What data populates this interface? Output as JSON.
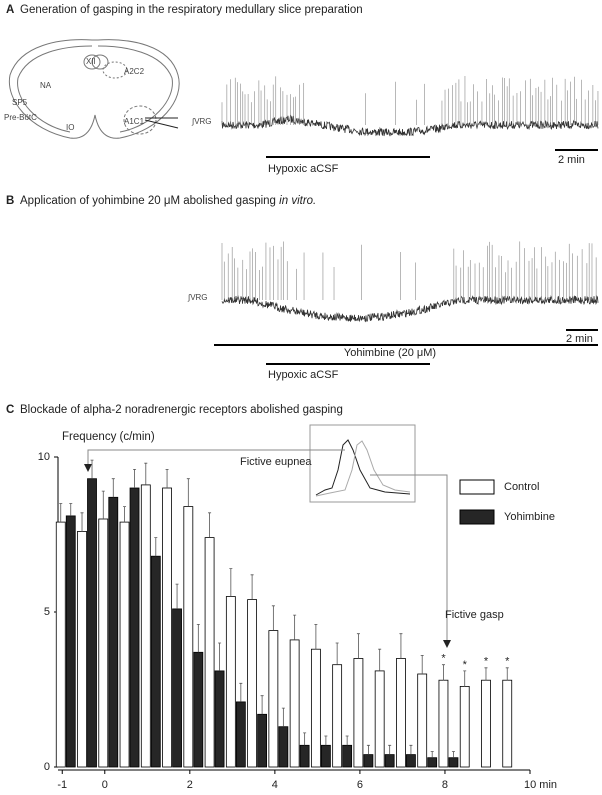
{
  "panel_a": {
    "letter": "A",
    "title": "Generation of gasping in the respiratory medullary slice preparation",
    "slice_labels": [
      "SP5",
      "NA",
      "XII",
      "A2C2",
      "A1C1",
      "Pre-BötC",
      "IO"
    ],
    "trace_label": "∫VRG",
    "scale_label": "2 min",
    "condition": "Hypoxic aCSF"
  },
  "panel_b": {
    "letter": "B",
    "title": "Application of yohimbine 20 μM abolished gasping",
    "title_italic": "in vitro.",
    "trace_label": "∫VRG",
    "scale_label": "2 min",
    "drug": "Yohimbine (20 μM)",
    "condition": "Hypoxic aCSF"
  },
  "chart_data": {
    "type": "bar",
    "letter": "C",
    "title": "Blockade of alpha-2 noradrenergic receptors abolished gasping",
    "y_label": "Frequency (c/min)",
    "x": [
      -1,
      -0.5,
      0,
      0.5,
      1,
      1.5,
      2,
      2.5,
      3,
      3.5,
      4,
      4.5,
      5,
      5.5,
      6,
      6.5,
      7,
      7.5,
      8,
      8.5,
      9,
      9.5
    ],
    "series": [
      {
        "name": "Control",
        "color": "#ffffff",
        "values": [
          7.9,
          7.6,
          8.0,
          7.9,
          9.1,
          9.0,
          8.4,
          7.4,
          5.5,
          5.4,
          4.4,
          4.1,
          3.8,
          3.3,
          3.5,
          3.1,
          3.5,
          3.0,
          2.8,
          2.6,
          2.8,
          2.8
        ],
        "errors": [
          0.6,
          0.6,
          0.9,
          0.5,
          0.7,
          0.6,
          0.9,
          0.8,
          0.9,
          0.8,
          0.8,
          0.8,
          0.8,
          0.7,
          0.8,
          0.7,
          0.8,
          0.6,
          0.5,
          0.5,
          0.4,
          0.4
        ]
      },
      {
        "name": "Yohimbine",
        "color": "#262626",
        "values": [
          8.1,
          9.3,
          8.7,
          9.0,
          6.8,
          5.1,
          3.7,
          3.1,
          2.1,
          1.7,
          1.3,
          0.7,
          0.7,
          0.7,
          0.4,
          0.4,
          0.4,
          0.3,
          0.3,
          null,
          null,
          null
        ],
        "errors": [
          0.4,
          0.6,
          0.6,
          0.6,
          0.6,
          0.8,
          0.9,
          0.9,
          0.6,
          0.6,
          0.6,
          0.4,
          0.3,
          0.3,
          0.3,
          0.3,
          0.3,
          0.2,
          0.2,
          null,
          null,
          null
        ]
      }
    ],
    "xlim": [
      -1.1,
      10
    ],
    "ylim": [
      0,
      10
    ],
    "xticks": [
      -1,
      0,
      2,
      4,
      6,
      8,
      {
        "value": 10,
        "label": "10 min"
      }
    ],
    "yticks": [
      0,
      5,
      10
    ],
    "significance": {
      "label": "*",
      "x": [
        8,
        8.5,
        9,
        9.5
      ]
    },
    "annotations": [
      "Fictive eupnea",
      "Fictive gasp"
    ]
  }
}
